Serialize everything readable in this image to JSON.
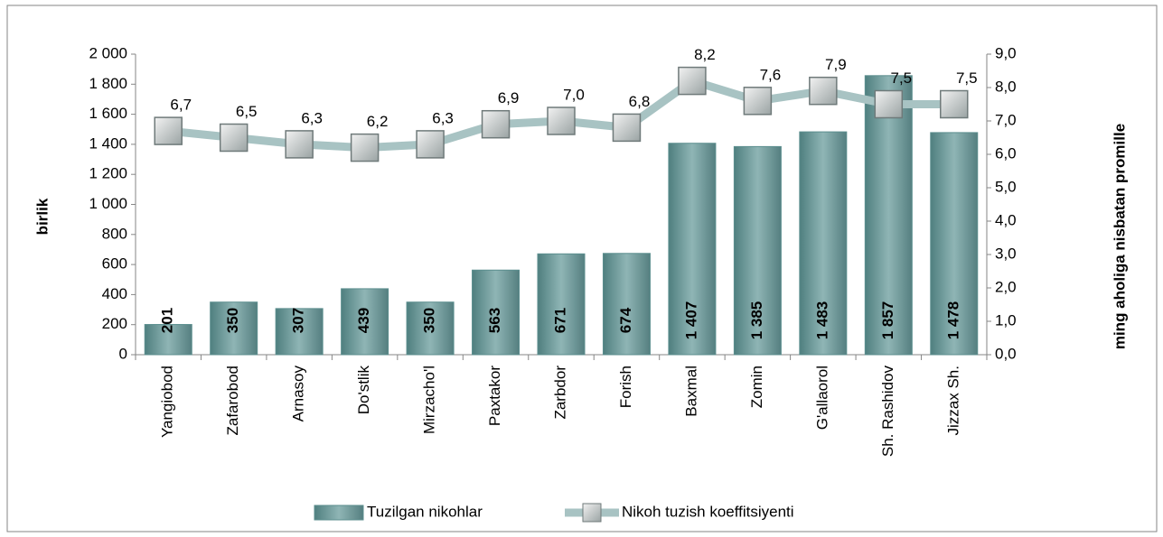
{
  "chart_data": {
    "type": "combo",
    "categories": [
      "Yangiobod",
      "Zafarobod",
      "Arnasoy",
      "Do'stlik",
      "Mirzacho'l",
      "Paxtakor",
      "Zarbdor",
      "Forish",
      "Baxmal",
      "Zomin",
      "G'allaorol",
      "Sh. Rashidov",
      "Jizzax  Sh."
    ],
    "series": [
      {
        "name": "Tuzilgan nikohlar",
        "type": "bar",
        "color": "#5b8e8e",
        "values": [
          201,
          350,
          307,
          439,
          350,
          563,
          671,
          674,
          1407,
          1385,
          1483,
          1857,
          1478
        ],
        "value_labels": [
          "201",
          "350",
          "307",
          "439",
          "350",
          "563",
          "671",
          "674",
          "1 407",
          "1 385",
          "1 483",
          "1 857",
          "1 478"
        ]
      },
      {
        "name": "Nikoh tuzish koeffitsiyenti",
        "type": "line",
        "axis": "y2",
        "color": "#a8c3c3",
        "values": [
          6.7,
          6.5,
          6.3,
          6.2,
          6.3,
          6.9,
          7.0,
          6.8,
          8.2,
          7.6,
          7.9,
          7.5,
          7.5
        ],
        "value_labels": [
          "6,7",
          "6,5",
          "6,3",
          "6,2",
          "6,3",
          "6,9",
          "7,0",
          "6,8",
          "8,2",
          "7,6",
          "7,9",
          "7,5",
          "7,5"
        ]
      }
    ],
    "ylabel": "birlik",
    "y2label": "ming aholiga nisbatan promille",
    "ylim": [
      0,
      2000
    ],
    "yticks": [
      0,
      200,
      400,
      600,
      800,
      {
        "value": 1000,
        "label": "1 000"
      },
      {
        "value": 1200,
        "label": "1 200"
      },
      {
        "value": 1400,
        "label": "1 400"
      },
      {
        "value": 1600,
        "label": "1 600"
      },
      {
        "value": 1800,
        "label": "1 800"
      },
      {
        "value": 2000,
        "label": "2 000"
      }
    ],
    "y2lim": [
      0,
      9
    ],
    "y2ticks": [
      {
        "value": 0,
        "label": "0,0"
      },
      {
        "value": 1,
        "label": "1,0"
      },
      {
        "value": 2,
        "label": "2,0"
      },
      {
        "value": 3,
        "label": "3,0"
      },
      {
        "value": 4,
        "label": "4,0"
      },
      {
        "value": 5,
        "label": "5,0"
      },
      {
        "value": 6,
        "label": "6,0"
      },
      {
        "value": 7,
        "label": "7,0"
      },
      {
        "value": 8,
        "label": "8,0"
      },
      {
        "value": 9,
        "label": "9,0"
      }
    ],
    "legend": "bottom"
  }
}
